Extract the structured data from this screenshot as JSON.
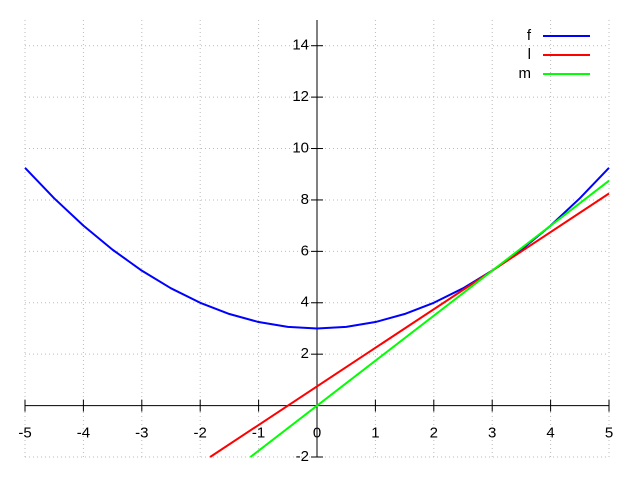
{
  "chart_data": {
    "type": "line",
    "series": [
      {
        "name": "f",
        "color": "#0000ff",
        "x": [
          -5,
          -4.5,
          -4,
          -3.5,
          -3,
          -2.5,
          -2,
          -1.5,
          -1,
          -0.5,
          0,
          0.5,
          1,
          1.5,
          2,
          2.5,
          3,
          3.5,
          4,
          4.5,
          5
        ],
        "values": [
          9.25,
          8.0625,
          7,
          6.0625,
          5.25,
          4.5625,
          4,
          3.5625,
          3.25,
          3.0625,
          3,
          3.0625,
          3.25,
          3.5625,
          4,
          4.5625,
          5.25,
          6.0625,
          7,
          8.0625,
          9.25
        ]
      },
      {
        "name": "l",
        "color": "#ff0000",
        "x": [
          -1.83,
          5
        ],
        "values": [
          -2,
          8.25
        ]
      },
      {
        "name": "m",
        "color": "#00ff00",
        "x": [
          -1.14,
          5
        ],
        "values": [
          -2,
          8.75
        ]
      }
    ],
    "xlim": [
      -5,
      5
    ],
    "ylim": [
      -2,
      15
    ],
    "xticks": [
      -5,
      -4,
      -3,
      -2,
      -1,
      0,
      1,
      2,
      3,
      4,
      5
    ],
    "yticks": [
      -2,
      2,
      4,
      6,
      8,
      10,
      12,
      14
    ],
    "grid": true,
    "legend": "top-right"
  }
}
